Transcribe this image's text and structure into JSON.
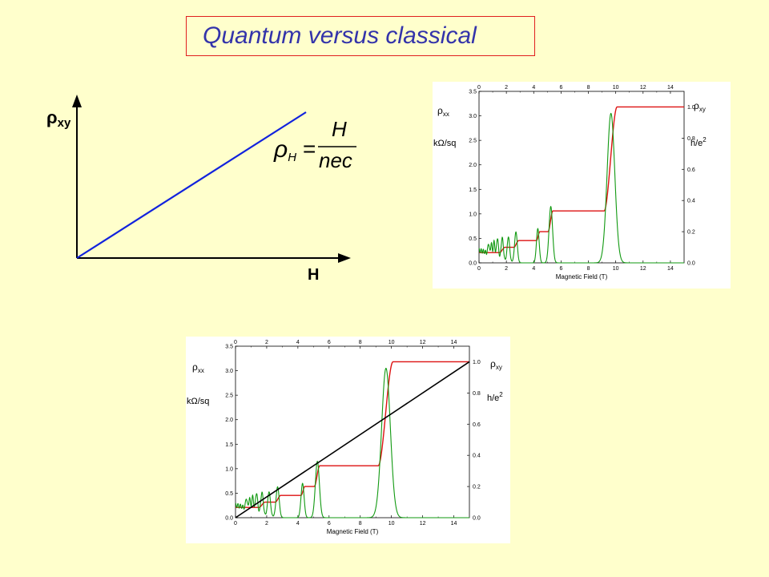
{
  "slide": {
    "title": "Quantum versus classical",
    "colors": {
      "background": "#FFFFCC",
      "title_border": "#E0201E",
      "title_text": "#3333AA"
    }
  },
  "classical": {
    "y_label_symbol": "ρ",
    "y_label_sub": "xy",
    "x_label": "H",
    "formula": {
      "lhs": "ρ",
      "lhs_sub": "H",
      "equals": "=",
      "numerator": "H",
      "denominator": "nec"
    },
    "line_color": "#1122DD"
  },
  "chart_data": [
    {
      "type": "line",
      "title": "",
      "xlabel": "Magnetic Field  (T)",
      "x_ticks": [
        "0",
        "2",
        "4",
        "6",
        "8",
        "10",
        "12",
        "14"
      ],
      "xlim": [
        0,
        15
      ],
      "ylabel_left": {
        "symbol": "ρ",
        "sub": "xx",
        "unit": "kΩ/sq"
      },
      "y_left_ticks": [
        "0.0",
        "0.5",
        "1.0",
        "1.5",
        "2.0",
        "2.5",
        "3.0",
        "3.5"
      ],
      "ylim_left": [
        0,
        3.5
      ],
      "ylabel_right": {
        "symbol": "ρ",
        "sub": "xy",
        "unit_base": "h/e",
        "unit_exp": "2"
      },
      "y_right_ticks": [
        "0.0",
        "0.2",
        "0.4",
        "0.6",
        "0.8",
        "1.0"
      ],
      "ylim_right": [
        0,
        1.1
      ],
      "grid": false,
      "series": [
        {
          "axis": "right",
          "color": "#DD1111",
          "plateaus": [
            {
              "x_from": 0.0,
              "x_to": 1.5,
              "value": 0.066
            },
            {
              "x_from": 1.9,
              "x_to": 2.55,
              "value": 0.1
            },
            {
              "x_from": 2.9,
              "x_to": 4.2,
              "value": 0.143
            },
            {
              "x_from": 4.45,
              "x_to": 5.05,
              "value": 0.2
            },
            {
              "x_from": 5.4,
              "x_to": 9.15,
              "value": 0.333
            },
            {
              "x_from": 10.1,
              "x_to": 15.0,
              "value": 1.0
            }
          ]
        },
        {
          "axis": "left",
          "color": "#119911",
          "peaks": [
            {
              "x": 0.7,
              "height": 0.22,
              "width": 0.05
            },
            {
              "x": 0.9,
              "height": 0.25,
              "width": 0.05
            },
            {
              "x": 1.1,
              "height": 0.3,
              "width": 0.06
            },
            {
              "x": 1.35,
              "height": 0.4,
              "width": 0.07
            },
            {
              "x": 1.7,
              "height": 0.45,
              "width": 0.08
            },
            {
              "x": 2.15,
              "height": 0.5,
              "width": 0.09
            },
            {
              "x": 2.7,
              "height": 0.62,
              "width": 0.1
            },
            {
              "x": 4.3,
              "height": 0.7,
              "width": 0.1
            },
            {
              "x": 5.25,
              "height": 1.15,
              "width": 0.13
            },
            {
              "x": 9.65,
              "height": 3.05,
              "width": 0.28
            }
          ],
          "background": [
            {
              "x": 0.0,
              "y": 0.3
            },
            {
              "x": 0.4,
              "y": 0.27
            },
            {
              "x": 1.0,
              "y": 0.17
            },
            {
              "x": 2.0,
              "y": 0.04
            },
            {
              "x": 3.0,
              "y": 0.0
            },
            {
              "x": 15.0,
              "y": 0.0
            }
          ]
        }
      ]
    },
    {
      "type": "line",
      "title": "",
      "xlabel": "Magnetic Field  (T)",
      "x_ticks": [
        "0",
        "2",
        "4",
        "6",
        "8",
        "10",
        "12",
        "14"
      ],
      "xlim": [
        0,
        15
      ],
      "ylabel_left": {
        "symbol": "ρ",
        "sub": "xx",
        "unit": "kΩ/sq"
      },
      "y_left_ticks": [
        "0.0",
        "0.5",
        "1.0",
        "1.5",
        "2.0",
        "2.5",
        "3.0",
        "3.5"
      ],
      "ylim_left": [
        0,
        3.5
      ],
      "ylabel_right": {
        "symbol": "ρ",
        "sub": "xy",
        "unit_base": "h/e",
        "unit_exp": "2"
      },
      "y_right_ticks": [
        "0.0",
        "0.2",
        "0.4",
        "0.6",
        "0.8",
        "1.0"
      ],
      "ylim_right": [
        0,
        1.1
      ],
      "grid": false,
      "series": [
        {
          "axis": "right",
          "color": "#DD1111",
          "plateaus": [
            {
              "x_from": 0.0,
              "x_to": 1.5,
              "value": 0.066
            },
            {
              "x_from": 1.9,
              "x_to": 2.55,
              "value": 0.1
            },
            {
              "x_from": 2.9,
              "x_to": 4.2,
              "value": 0.143
            },
            {
              "x_from": 4.45,
              "x_to": 5.05,
              "value": 0.2
            },
            {
              "x_from": 5.4,
              "x_to": 9.15,
              "value": 0.333
            },
            {
              "x_from": 10.1,
              "x_to": 15.0,
              "value": 1.0
            }
          ]
        },
        {
          "axis": "left",
          "color": "#119911",
          "peaks": [
            {
              "x": 0.7,
              "height": 0.22,
              "width": 0.05
            },
            {
              "x": 0.9,
              "height": 0.25,
              "width": 0.05
            },
            {
              "x": 1.1,
              "height": 0.3,
              "width": 0.06
            },
            {
              "x": 1.35,
              "height": 0.4,
              "width": 0.07
            },
            {
              "x": 1.7,
              "height": 0.45,
              "width": 0.08
            },
            {
              "x": 2.15,
              "height": 0.5,
              "width": 0.09
            },
            {
              "x": 2.7,
              "height": 0.62,
              "width": 0.1
            },
            {
              "x": 4.3,
              "height": 0.7,
              "width": 0.1
            },
            {
              "x": 5.25,
              "height": 1.15,
              "width": 0.13
            },
            {
              "x": 9.65,
              "height": 3.05,
              "width": 0.28
            }
          ],
          "background": [
            {
              "x": 0.0,
              "y": 0.3
            },
            {
              "x": 0.4,
              "y": 0.27
            },
            {
              "x": 1.0,
              "y": 0.17
            },
            {
              "x": 2.0,
              "y": 0.04
            },
            {
              "x": 3.0,
              "y": 0.0
            },
            {
              "x": 15.0,
              "y": 0.0
            }
          ]
        },
        {
          "axis": "right",
          "color": "#000000",
          "points": [
            {
              "x": 0.0,
              "y": 0.0
            },
            {
              "x": 15.0,
              "y": 1.0
            }
          ]
        }
      ]
    }
  ]
}
